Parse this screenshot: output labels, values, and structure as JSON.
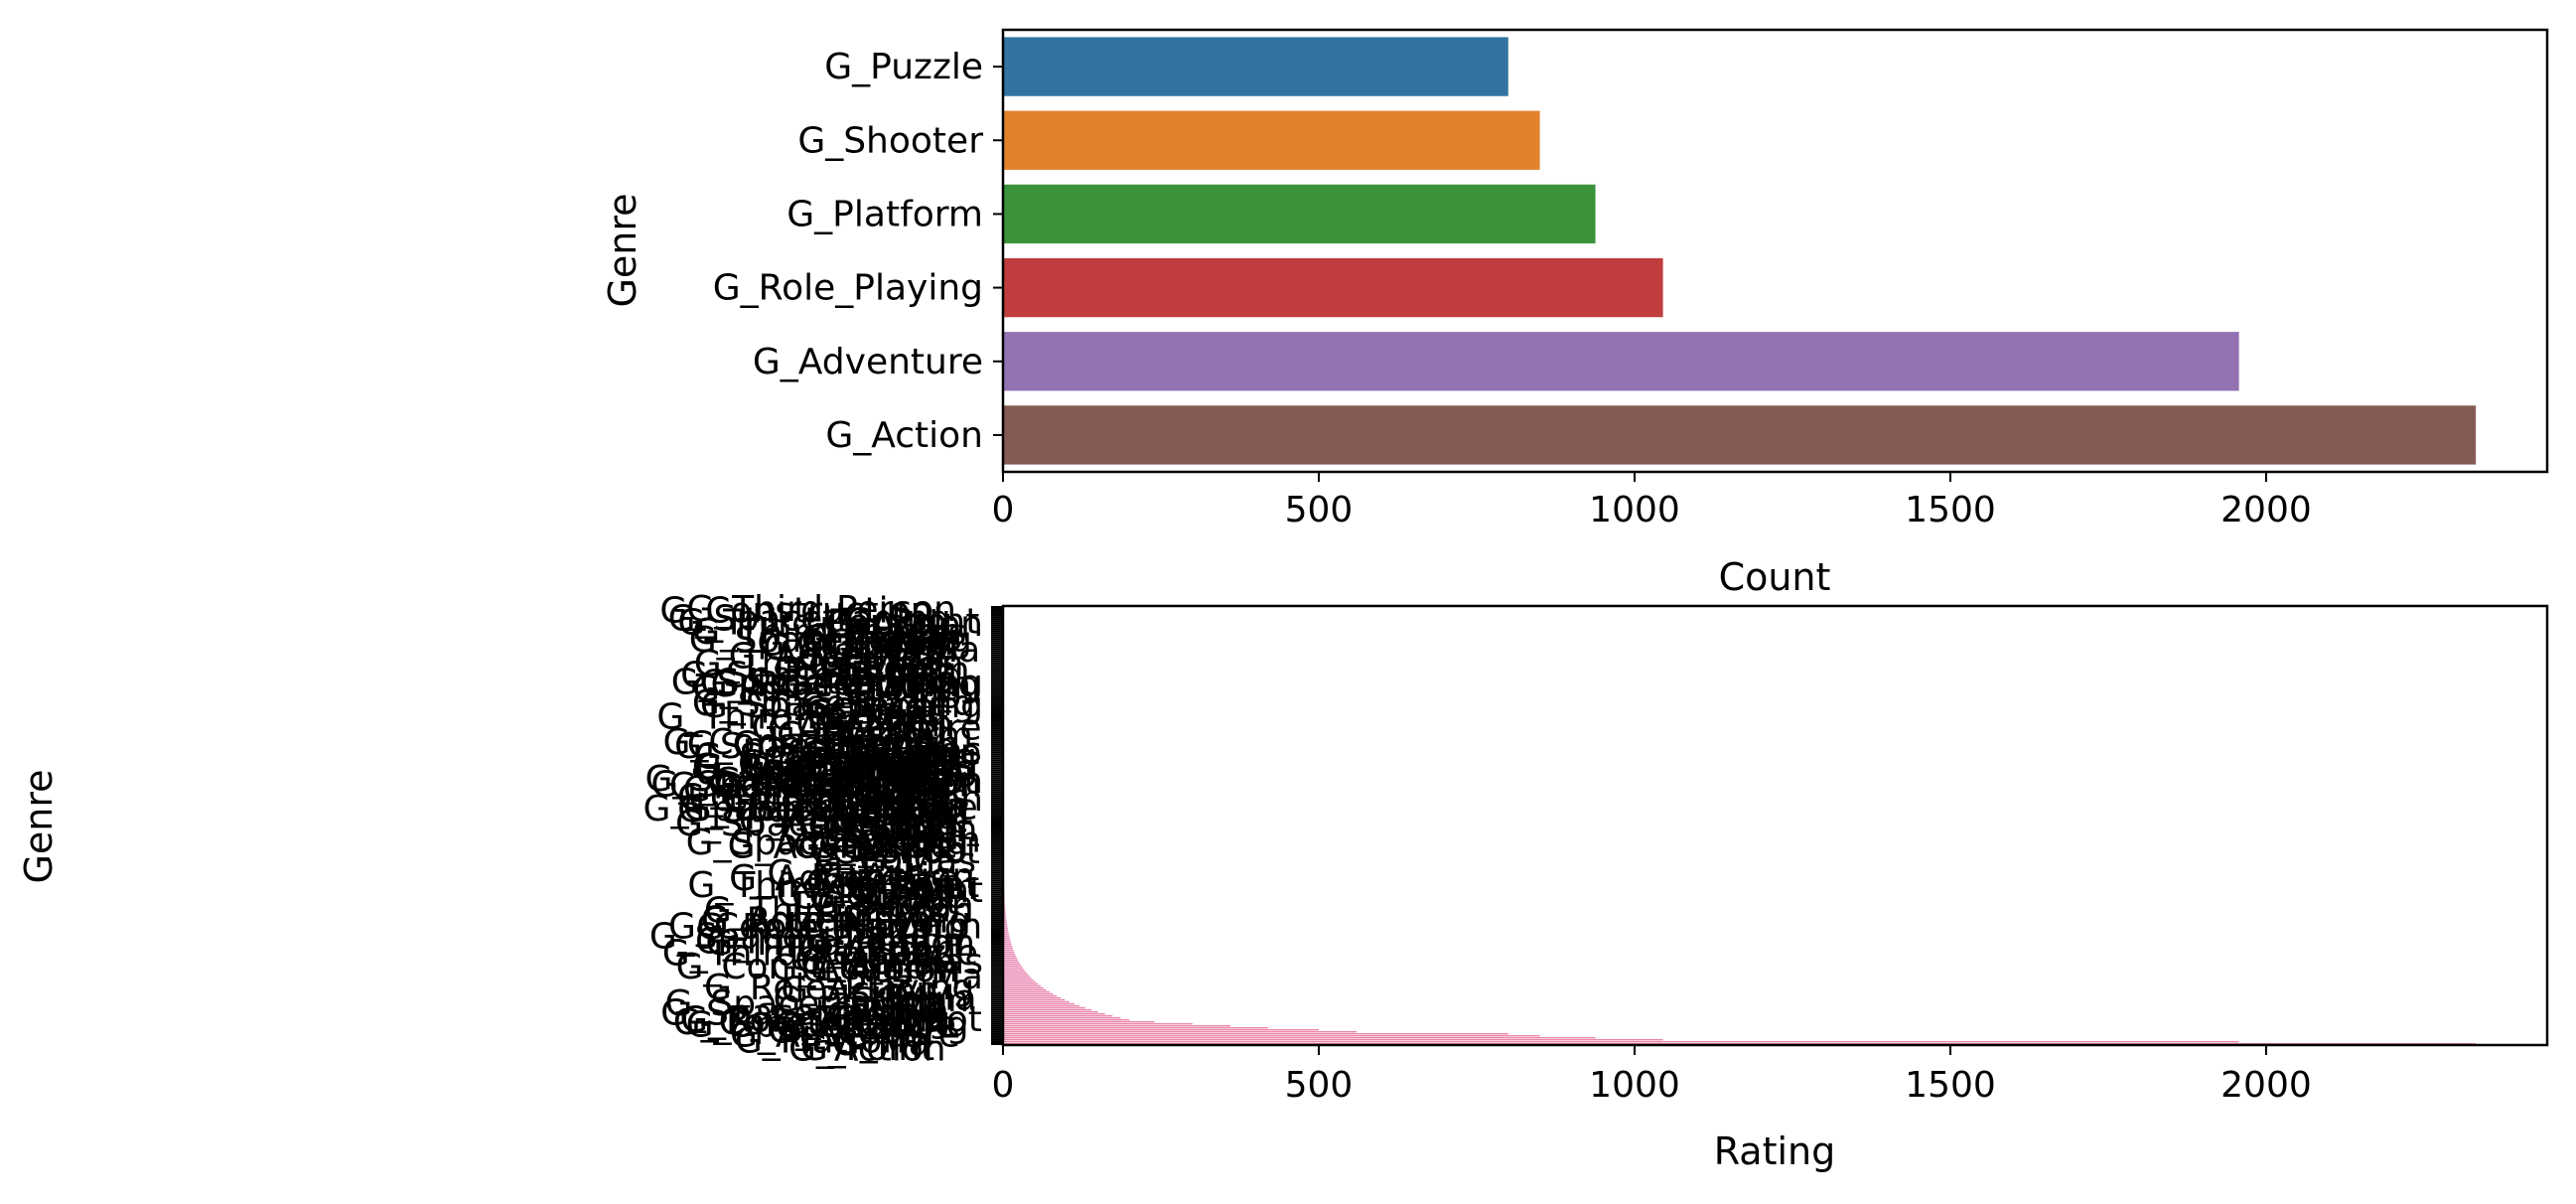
{
  "chart_data": [
    {
      "type": "bar",
      "orientation": "horizontal",
      "categories": [
        "G_Puzzle",
        "G_Shooter",
        "G_Platform",
        "G_Role_Playing",
        "G_Adventure",
        "G_Action"
      ],
      "values": [
        800,
        850,
        938,
        1045,
        1957,
        2332
      ],
      "colors": [
        "#3274a1",
        "#e1812c",
        "#3a923a",
        "#c03d3e",
        "#9372b2",
        "#845b53"
      ],
      "xlabel": "Count",
      "ylabel": "Genre",
      "xlim": [
        0,
        2445
      ],
      "xticks": [
        "0",
        "500",
        "1000",
        "1500",
        "2000"
      ],
      "grid": false
    },
    {
      "type": "bar",
      "orientation": "horizontal",
      "note_categories": "Dense overlapping category labels; only a few are legible",
      "categories": [
        "G_Action",
        "G_Spacetrading",
        "G_Construction",
        "G_Third-Person",
        "G_Point",
        "G_Ma",
        "G_Mas",
        "G_Shoot",
        "G_Platform",
        "G_Puzzle",
        "G_Role_Playing",
        "G_Adventure",
        "G_Action"
      ],
      "values_top_bars": [
        2332,
        1957,
        1045,
        938,
        850,
        800,
        560,
        500,
        420,
        360,
        300,
        240,
        200
      ],
      "xlabel": "Rating",
      "ylabel": "Genre",
      "xlim": [
        0,
        2445
      ],
      "xticks": [
        "0",
        "500",
        "1000",
        "1500",
        "2000"
      ],
      "grid": false
    }
  ]
}
